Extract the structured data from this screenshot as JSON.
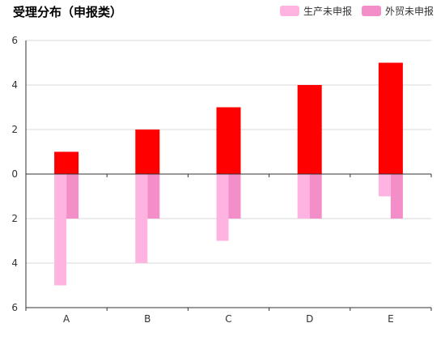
{
  "chart_data": {
    "type": "bar",
    "title": "受理分布（申报类）",
    "categories": [
      "A",
      "B",
      "C",
      "D",
      "E"
    ],
    "series": [
      {
        "name": "",
        "values": [
          1,
          2,
          3,
          4,
          5
        ],
        "color": "#ff0000",
        "direction": "up"
      },
      {
        "name": "生产未申报",
        "values": [
          5,
          4,
          3,
          2,
          1
        ],
        "color": "#ffb3e1",
        "direction": "down"
      },
      {
        "name": "外贸未申报",
        "values": [
          2,
          2,
          2,
          2,
          2
        ],
        "color": "#f48ec8",
        "direction": "down"
      }
    ],
    "y_ticks": [
      "6",
      "4",
      "2",
      "0",
      "2",
      "4",
      "6"
    ],
    "ylim": [
      -6,
      6
    ],
    "grid": true,
    "legend_position": "top-right"
  }
}
